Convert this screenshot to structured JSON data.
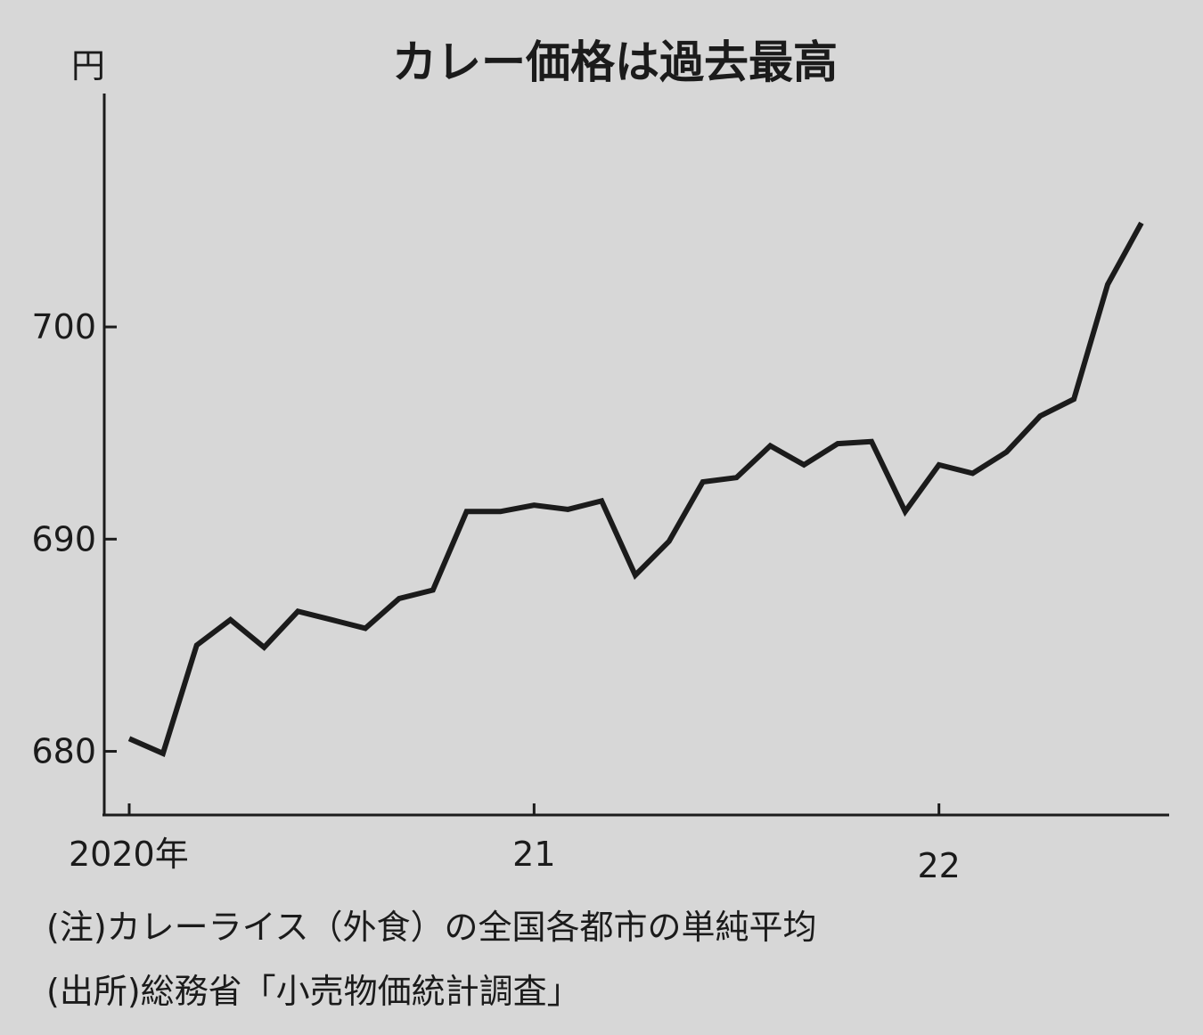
{
  "chart_data": {
    "type": "line",
    "title": "カレー価格は過去最高",
    "unit_label": "円",
    "y_ticks": [
      680,
      690,
      700
    ],
    "ylim": [
      677,
      711
    ],
    "x_ticks": [
      {
        "label": "2020年",
        "index": 0
      },
      {
        "label": "21",
        "index": 12
      },
      {
        "label": "22",
        "index": 24
      }
    ],
    "x_range": [
      0,
      30.4
    ],
    "series": [
      {
        "values": [
          680.6,
          679.9,
          685.0,
          686.2,
          684.9,
          686.6,
          686.2,
          685.8,
          687.2,
          687.6,
          691.3,
          691.3,
          691.6,
          691.4,
          691.8,
          688.3,
          689.9,
          692.7,
          692.9,
          694.4,
          693.5,
          694.5,
          694.6,
          691.3,
          693.5,
          693.1,
          694.1,
          695.8,
          696.6,
          702.0,
          704.9
        ]
      }
    ],
    "grid": false,
    "legend": "none"
  },
  "notes": {
    "note": "(注)カレーライス（外食）の全国各都市の単純平均",
    "source": "(出所)総務省「小売物価統計調査」"
  }
}
